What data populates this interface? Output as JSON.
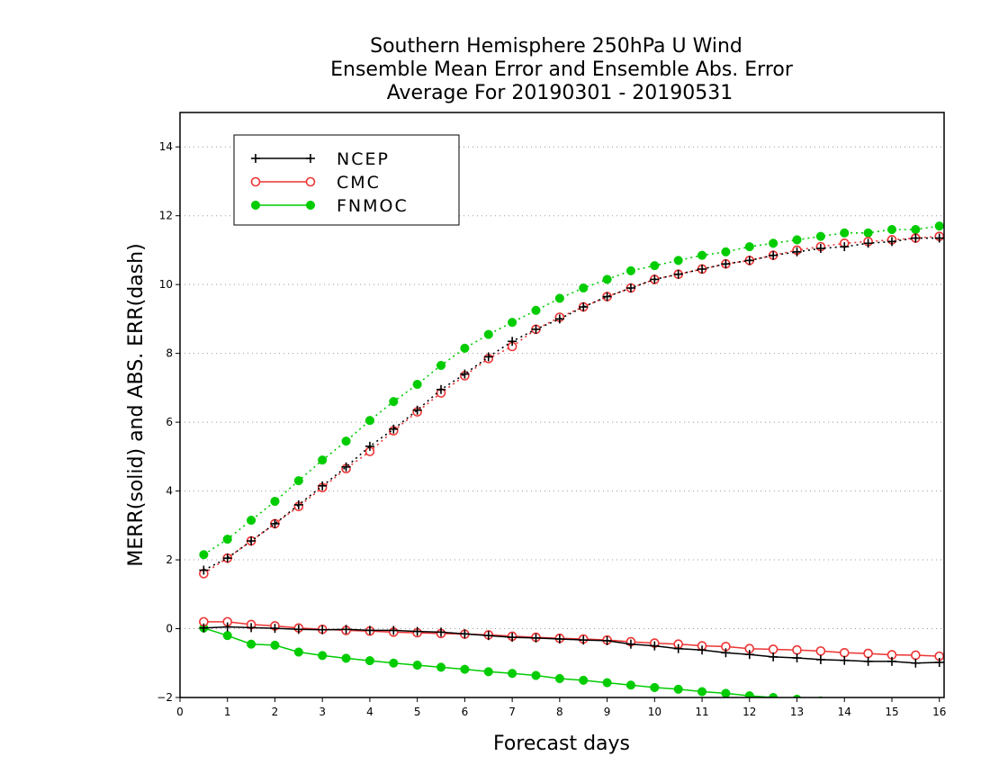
{
  "chart_data": {
    "type": "line",
    "title": [
      "Southern Hemisphere 250hPa U Wind",
      "Ensemble Mean Error and Ensemble Abs. Error",
      "Average For 20190301 - 20190531"
    ],
    "xlabel": "Forecast days",
    "ylabel": "MERR(solid) and ABS. ERR(dash)",
    "xlim": [
      0,
      16.1
    ],
    "ylim": [
      -2,
      15
    ],
    "xticks": [
      0,
      1,
      2,
      3,
      4,
      5,
      6,
      7,
      8,
      9,
      10,
      11,
      12,
      13,
      14,
      15,
      16
    ],
    "yticks": [
      -2,
      0,
      2,
      4,
      6,
      8,
      10,
      12,
      14
    ],
    "grid": "horizontal dotted",
    "legend_position": "top-left",
    "x": [
      0.5,
      1,
      1.5,
      2,
      2.5,
      3,
      3.5,
      4,
      4.5,
      5,
      5.5,
      6,
      6.5,
      7,
      7.5,
      8,
      8.5,
      9,
      9.5,
      10,
      10.5,
      11,
      11.5,
      12,
      12.5,
      13,
      13.5,
      14,
      14.5,
      15,
      15.5,
      16
    ],
    "series": [
      {
        "name": "NCEP",
        "kind": "mean_error",
        "style": "solid",
        "marker": "plus",
        "color": "#000000",
        "values": [
          0.02,
          0.05,
          0.03,
          0.01,
          -0.02,
          -0.03,
          -0.02,
          -0.05,
          -0.05,
          -0.08,
          -0.1,
          -0.15,
          -0.2,
          -0.25,
          -0.27,
          -0.3,
          -0.33,
          -0.35,
          -0.45,
          -0.5,
          -0.58,
          -0.62,
          -0.7,
          -0.75,
          -0.82,
          -0.85,
          -0.9,
          -0.92,
          -0.95,
          -0.95,
          -1.0,
          -0.98
        ]
      },
      {
        "name": "CMC",
        "kind": "mean_error",
        "style": "solid",
        "marker": "open-circle",
        "color": "#ee3333",
        "values": [
          0.2,
          0.2,
          0.12,
          0.08,
          0.02,
          -0.02,
          -0.05,
          -0.07,
          -0.1,
          -0.12,
          -0.14,
          -0.16,
          -0.18,
          -0.22,
          -0.25,
          -0.28,
          -0.3,
          -0.33,
          -0.38,
          -0.42,
          -0.45,
          -0.5,
          -0.52,
          -0.58,
          -0.6,
          -0.62,
          -0.65,
          -0.7,
          -0.72,
          -0.76,
          -0.77,
          -0.8
        ]
      },
      {
        "name": "FNMOC",
        "kind": "mean_error",
        "style": "solid",
        "marker": "filled-circle",
        "color": "#00cc00",
        "values": [
          0.02,
          -0.2,
          -0.45,
          -0.48,
          -0.68,
          -0.78,
          -0.86,
          -0.93,
          -1.0,
          -1.06,
          -1.12,
          -1.18,
          -1.25,
          -1.3,
          -1.36,
          -1.45,
          -1.5,
          -1.57,
          -1.64,
          -1.71,
          -1.76,
          -1.83,
          -1.88,
          -1.95,
          -2.0,
          -2.05,
          -2.1,
          -2.12,
          -2.15,
          -2.18,
          -2.2,
          -2.22
        ]
      },
      {
        "name": "NCEP",
        "kind": "abs_error",
        "style": "dotted",
        "marker": "plus",
        "color": "#000000",
        "values": [
          1.7,
          2.05,
          2.55,
          3.05,
          3.6,
          4.15,
          4.7,
          5.3,
          5.8,
          6.35,
          6.95,
          7.4,
          7.9,
          8.35,
          8.7,
          9.0,
          9.35,
          9.65,
          9.9,
          10.15,
          10.3,
          10.45,
          10.6,
          10.7,
          10.85,
          10.95,
          11.05,
          11.1,
          11.2,
          11.25,
          11.35,
          11.35
        ]
      },
      {
        "name": "CMC",
        "kind": "abs_error",
        "style": "dotted",
        "marker": "open-circle",
        "color": "#ee3333",
        "values": [
          1.6,
          2.05,
          2.55,
          3.05,
          3.55,
          4.1,
          4.65,
          5.15,
          5.75,
          6.3,
          6.85,
          7.35,
          7.85,
          8.2,
          8.7,
          9.05,
          9.35,
          9.65,
          9.9,
          10.15,
          10.3,
          10.45,
          10.6,
          10.7,
          10.85,
          11.0,
          11.1,
          11.2,
          11.25,
          11.3,
          11.35,
          11.4
        ]
      },
      {
        "name": "FNMOC",
        "kind": "abs_error",
        "style": "dotted",
        "marker": "filled-circle",
        "color": "#00cc00",
        "values": [
          2.15,
          2.6,
          3.15,
          3.7,
          4.3,
          4.9,
          5.45,
          6.05,
          6.6,
          7.1,
          7.65,
          8.15,
          8.55,
          8.9,
          9.25,
          9.6,
          9.9,
          10.15,
          10.4,
          10.55,
          10.7,
          10.85,
          10.95,
          11.1,
          11.2,
          11.3,
          11.4,
          11.5,
          11.5,
          11.6,
          11.6,
          11.7
        ]
      }
    ],
    "legend": [
      {
        "label": "NCEP",
        "marker": "plus",
        "color": "#000000"
      },
      {
        "label": "CMC",
        "marker": "open-circle",
        "color": "#ee3333"
      },
      {
        "label": "FNMOC",
        "marker": "filled-circle",
        "color": "#00cc00"
      }
    ]
  }
}
